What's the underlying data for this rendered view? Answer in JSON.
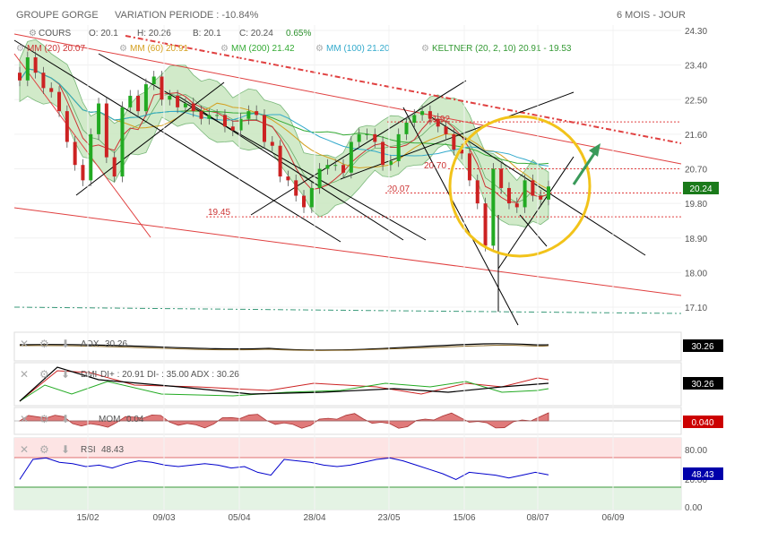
{
  "header": {
    "instrument": "GROUPE GORGE",
    "variation": "VARIATION PERIODE : -10.84%",
    "period": "6 MOIS - JOUR"
  },
  "ohlc": {
    "series_label": "COURS",
    "open": "O: 20.1",
    "high": "H: 20.26",
    "low": "B: 20.1",
    "close": "C: 20.24",
    "change": "0.65%"
  },
  "indicator_legend": [
    {
      "label": "MM (20)",
      "value": "20.07",
      "color": "#cc3333"
    },
    {
      "label": "MM (60)",
      "value": "20.91",
      "color": "#d4a020"
    },
    {
      "label": "MM (200)",
      "value": "21.42",
      "color": "#33aa33"
    },
    {
      "label": "MM (100)",
      "value": "21.20",
      "color": "#33aacc"
    },
    {
      "label": "KELTNER (20, 2, 10)",
      "value": "20.91 - 19.53",
      "color": "#339933"
    }
  ],
  "price_axis": [
    "24.30",
    "23.40",
    "22.50",
    "21.60",
    "20.70",
    "19.80",
    "18.90",
    "18.00",
    "17.10"
  ],
  "last_price_badge": "20.24",
  "annotations": [
    "21.92",
    "20.70",
    "20.07",
    "19.45"
  ],
  "x_axis": [
    "15/02",
    "09/03",
    "05/04",
    "28/04",
    "23/05",
    "15/06",
    "08/07",
    "06/09"
  ],
  "panels": {
    "adx": {
      "label": "ADX",
      "value": "30.26",
      "badge": "30.26",
      "colors": {
        "badge_bg": "#000000"
      }
    },
    "dmi": {
      "label": "DMI",
      "detail": "DI+ : 20.91  DI- : 35.00  ADX : 30.26",
      "badge": "30.26",
      "colors": {
        "badge_bg": "#000000"
      }
    },
    "mom": {
      "label": "MOM",
      "value": "0.04",
      "badge": "0.040",
      "colors": {
        "badge_bg": "#cc0000"
      }
    },
    "rsi": {
      "label": "RSI",
      "value": "48.43",
      "badge": "48.43",
      "axis": [
        "80.00",
        "20.00",
        "0.00"
      ],
      "colors": {
        "badge_bg": "#0000aa"
      }
    }
  },
  "chart_data": {
    "type": "candlestick",
    "title": "GROUPE GORGE",
    "period": "6 MOIS - JOUR",
    "ylim": [
      17.1,
      24.3
    ],
    "x_ticks": [
      "15/02",
      "09/03",
      "05/04",
      "28/04",
      "23/05",
      "15/06",
      "08/07",
      "06/09"
    ],
    "y_ticks": [
      24.3,
      23.4,
      22.5,
      21.6,
      20.7,
      19.8,
      18.9,
      18.0,
      17.1
    ],
    "close_series": [
      23.0,
      23.6,
      23.2,
      22.8,
      22.7,
      22.2,
      21.4,
      20.8,
      20.4,
      21.6,
      22.4,
      21.0,
      20.5,
      22.3,
      22.6,
      22.2,
      22.9,
      23.1,
      22.5,
      22.6,
      22.3,
      22.4,
      22.2,
      22.0,
      22.1,
      22.1,
      21.8,
      21.7,
      22.0,
      22.2,
      22.1,
      21.4,
      21.3,
      20.5,
      20.4,
      20.0,
      19.7,
      20.2,
      20.7,
      20.8,
      20.8,
      20.6,
      21.4,
      21.6,
      21.6,
      21.4,
      20.8,
      20.9,
      21.6,
      21.9,
      22.1,
      22.2,
      22.0,
      21.8,
      21.6,
      21.2,
      21.1,
      20.4,
      19.8,
      18.7,
      20.7,
      20.2,
      19.8,
      19.7,
      20.4,
      20.0,
      19.9,
      20.24
    ],
    "keltner": {
      "upper": 20.91,
      "lower": 19.53
    },
    "moving_averages": [
      {
        "name": "MM (20)",
        "last": 20.07
      },
      {
        "name": "MM (60)",
        "last": 20.91
      },
      {
        "name": "MM (200)",
        "last": 21.42
      },
      {
        "name": "MM (100)",
        "last": 21.2
      }
    ],
    "horizontal_levels": [
      21.92,
      20.7,
      20.07,
      19.45
    ],
    "adx": {
      "last": 30.26
    },
    "dmi": {
      "di_plus": 20.91,
      "di_minus": 35.0,
      "adx": 30.26
    },
    "momentum": {
      "last": 0.04
    },
    "rsi": {
      "last": 48.43,
      "axis": [
        80,
        20,
        0
      ]
    }
  }
}
